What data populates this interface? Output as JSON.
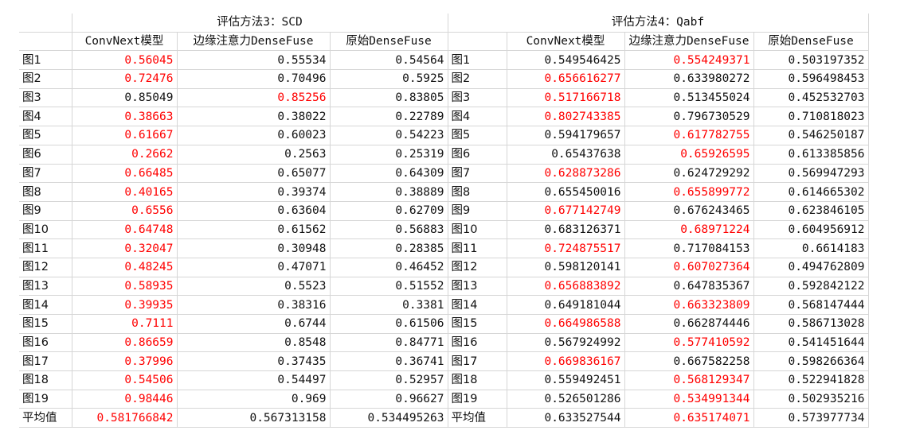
{
  "sections": [
    {
      "title": "评估方法3：SCD",
      "columns": [
        "ConvNext模型",
        "边缘注意力DenseFuse",
        "原始DenseFuse"
      ],
      "rows": [
        {
          "label": "图1",
          "values": [
            "0.56045",
            "0.55534",
            "0.54564"
          ],
          "highlight": 0
        },
        {
          "label": "图2",
          "values": [
            "0.72476",
            "0.70496",
            "0.5925"
          ],
          "highlight": 0
        },
        {
          "label": "图3",
          "values": [
            "0.85049",
            "0.85256",
            "0.83805"
          ],
          "highlight": 1
        },
        {
          "label": "图4",
          "values": [
            "0.38663",
            "0.38022",
            "0.22789"
          ],
          "highlight": 0
        },
        {
          "label": "图5",
          "values": [
            "0.61667",
            "0.60023",
            "0.54223"
          ],
          "highlight": 0
        },
        {
          "label": "图6",
          "values": [
            "0.2662",
            "0.2563",
            "0.25319"
          ],
          "highlight": 0
        },
        {
          "label": "图7",
          "values": [
            "0.66485",
            "0.65077",
            "0.64309"
          ],
          "highlight": 0
        },
        {
          "label": "图8",
          "values": [
            "0.40165",
            "0.39374",
            "0.38889"
          ],
          "highlight": 0
        },
        {
          "label": "图9",
          "values": [
            "0.6556",
            "0.63604",
            "0.62709"
          ],
          "highlight": 0
        },
        {
          "label": "图10",
          "values": [
            "0.64748",
            "0.61562",
            "0.56883"
          ],
          "highlight": 0
        },
        {
          "label": "图11",
          "values": [
            "0.32047",
            "0.30948",
            "0.28385"
          ],
          "highlight": 0
        },
        {
          "label": "图12",
          "values": [
            "0.48245",
            "0.47071",
            "0.46452"
          ],
          "highlight": 0
        },
        {
          "label": "图13",
          "values": [
            "0.58935",
            "0.5523",
            "0.51552"
          ],
          "highlight": 0
        },
        {
          "label": "图14",
          "values": [
            "0.39935",
            "0.38316",
            "0.3381"
          ],
          "highlight": 0
        },
        {
          "label": "图15",
          "values": [
            "0.7111",
            "0.6744",
            "0.61506"
          ],
          "highlight": 0
        },
        {
          "label": "图16",
          "values": [
            "0.86659",
            "0.8548",
            "0.84771"
          ],
          "highlight": 0
        },
        {
          "label": "图17",
          "values": [
            "0.37996",
            "0.37435",
            "0.36741"
          ],
          "highlight": 0
        },
        {
          "label": "图18",
          "values": [
            "0.54506",
            "0.54497",
            "0.52957"
          ],
          "highlight": 0
        },
        {
          "label": "图19",
          "values": [
            "0.98446",
            "0.969",
            "0.96627"
          ],
          "highlight": 0
        },
        {
          "label": "平均值",
          "values": [
            "0.581766842",
            "0.567313158",
            "0.534495263"
          ],
          "highlight": 0
        }
      ]
    },
    {
      "title": "评估方法4：Qabf",
      "columns": [
        "ConvNext模型",
        "边缘注意力DenseFuse",
        "原始DenseFuse"
      ],
      "rows": [
        {
          "label": "图1",
          "values": [
            "0.549546425",
            "0.554249371",
            "0.503197352"
          ],
          "highlight": 1
        },
        {
          "label": "图2",
          "values": [
            "0.656616277",
            "0.633980272",
            "0.596498453"
          ],
          "highlight": 0
        },
        {
          "label": "图3",
          "values": [
            "0.517166718",
            "0.513455024",
            "0.452532703"
          ],
          "highlight": 0
        },
        {
          "label": "图4",
          "values": [
            "0.802743385",
            "0.796730529",
            "0.710818023"
          ],
          "highlight": 0
        },
        {
          "label": "图5",
          "values": [
            "0.594179657",
            "0.617782755",
            "0.546250187"
          ],
          "highlight": 1
        },
        {
          "label": "图6",
          "values": [
            "0.65437638",
            "0.65926595",
            "0.613385856"
          ],
          "highlight": 1
        },
        {
          "label": "图7",
          "values": [
            "0.628873286",
            "0.624729292",
            "0.569947293"
          ],
          "highlight": 0
        },
        {
          "label": "图8",
          "values": [
            "0.655450016",
            "0.655899772",
            "0.614665302"
          ],
          "highlight": 1
        },
        {
          "label": "图9",
          "values": [
            "0.677142749",
            "0.676243465",
            "0.623846105"
          ],
          "highlight": 0
        },
        {
          "label": "图10",
          "values": [
            "0.683126371",
            "0.68971224",
            "0.604956912"
          ],
          "highlight": 1
        },
        {
          "label": "图11",
          "values": [
            "0.724875517",
            "0.717084153",
            "0.6614183"
          ],
          "highlight": 0
        },
        {
          "label": "图12",
          "values": [
            "0.598120141",
            "0.607027364",
            "0.494762809"
          ],
          "highlight": 1
        },
        {
          "label": "图13",
          "values": [
            "0.656883892",
            "0.647835367",
            "0.592842122"
          ],
          "highlight": 0
        },
        {
          "label": "图14",
          "values": [
            "0.649181044",
            "0.663323809",
            "0.568147444"
          ],
          "highlight": 1
        },
        {
          "label": "图15",
          "values": [
            "0.664986588",
            "0.662874446",
            "0.586713028"
          ],
          "highlight": 0
        },
        {
          "label": "图16",
          "values": [
            "0.567924992",
            "0.577410592",
            "0.541451644"
          ],
          "highlight": 1
        },
        {
          "label": "图17",
          "values": [
            "0.669836167",
            "0.667582258",
            "0.598266364"
          ],
          "highlight": 0
        },
        {
          "label": "图18",
          "values": [
            "0.559492451",
            "0.568129347",
            "0.522941828"
          ],
          "highlight": 1
        },
        {
          "label": "图19",
          "values": [
            "0.526501286",
            "0.534991344",
            "0.502935216"
          ],
          "highlight": 1
        },
        {
          "label": "平均值",
          "values": [
            "0.633527544",
            "0.635174071",
            "0.573977734"
          ],
          "highlight": 1
        }
      ]
    }
  ],
  "colors": {
    "highlight": "#ff0000",
    "text": "#111111",
    "grid": "#d6d6d6"
  }
}
